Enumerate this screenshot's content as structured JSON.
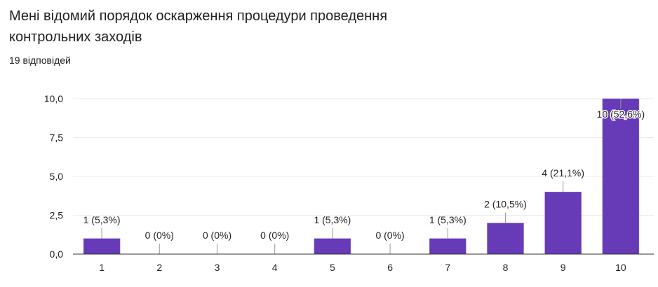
{
  "question": {
    "title": "Мені відомий порядок оскарження процедури проведення контрольних заходів",
    "responses": "19 відповідей"
  },
  "chart_data": {
    "type": "bar",
    "categories": [
      "1",
      "2",
      "3",
      "4",
      "5",
      "6",
      "7",
      "8",
      "9",
      "10"
    ],
    "values": [
      1,
      0,
      0,
      0,
      1,
      0,
      1,
      2,
      4,
      10
    ],
    "data_labels": [
      "1 (5,3%)",
      "0 (0%)",
      "0 (0%)",
      "0 (0%)",
      "1 (5,3%)",
      "0 (0%)",
      "1 (5,3%)",
      "2 (10,5%)",
      "4 (21,1%)",
      "10 (52,6%)"
    ],
    "yticks": [
      "0,0",
      "2,5",
      "5,0",
      "7,5",
      "10,0"
    ],
    "ytick_values": [
      0,
      2.5,
      5,
      7.5,
      10
    ],
    "ylim": [
      0,
      10
    ],
    "grid": true,
    "bar_color": "#673ab7"
  }
}
